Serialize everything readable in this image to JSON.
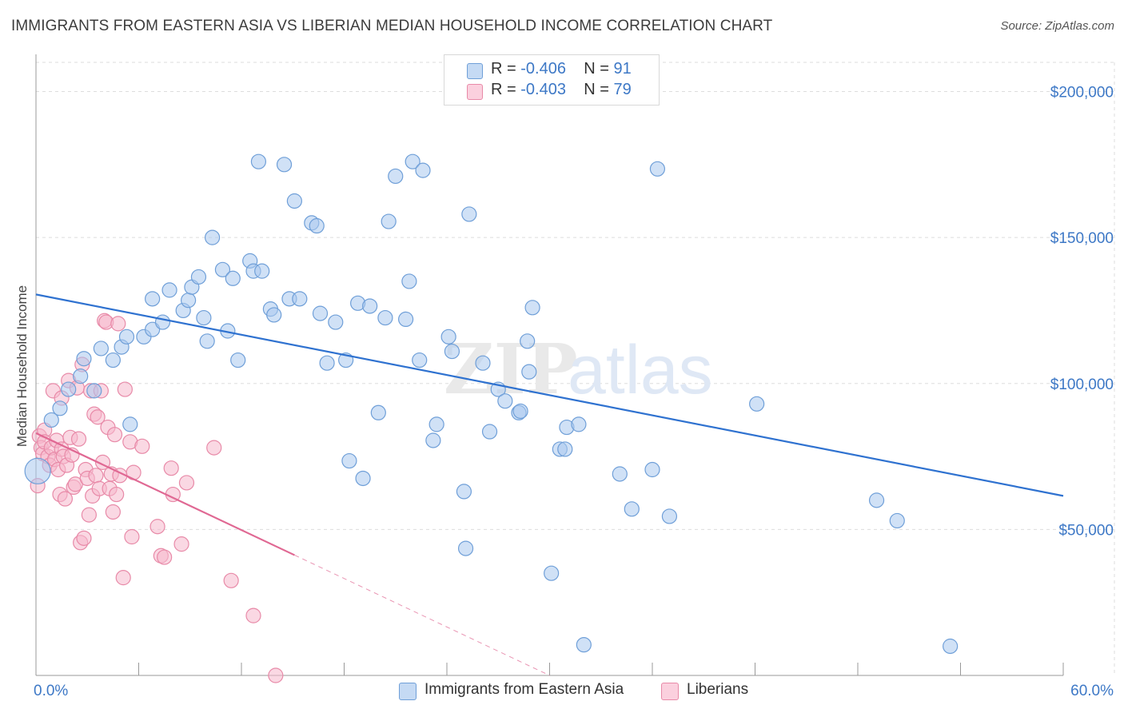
{
  "header": {
    "title": "IMMIGRANTS FROM EASTERN ASIA VS LIBERIAN MEDIAN HOUSEHOLD INCOME CORRELATION CHART",
    "source": "Source: ZipAtlas.com"
  },
  "legend": {
    "rows": [
      {
        "r_label": "R = ",
        "r_value": "-0.406",
        "n_label": "N = ",
        "n_value": "91"
      },
      {
        "r_label": "R = ",
        "r_value": "-0.403",
        "n_label": "N = ",
        "n_value": "79"
      }
    ]
  },
  "watermark": {
    "part1": "ZIP",
    "part2": "atlas"
  },
  "colors": {
    "blue_fill": "#a9c8ef",
    "blue_stroke": "#6f9fd8",
    "blue_line": "#2f72d0",
    "pink_fill": "#f6b8cc",
    "pink_stroke": "#e88aa8",
    "pink_line": "#e06893",
    "tick_text": "#3d78c6",
    "grid": "#dddddd"
  },
  "chart_data": {
    "type": "scatter",
    "title": "IMMIGRANTS FROM EASTERN ASIA VS LIBERIAN MEDIAN HOUSEHOLD INCOME CORRELATION CHART",
    "xlabel": "",
    "ylabel": "Median Household Income",
    "xlim": [
      0,
      60
    ],
    "ylim": [
      0,
      210000
    ],
    "x_tick_labels": [
      "0.0%",
      "60.0%"
    ],
    "y_ticks": [
      {
        "value": 50000,
        "label": "$50,000"
      },
      {
        "value": 100000,
        "label": "$100,000"
      },
      {
        "value": 150000,
        "label": "$150,000"
      },
      {
        "value": 200000,
        "label": "$200,000"
      }
    ],
    "grid": true,
    "legend_position": "top-center",
    "series": [
      {
        "name": "Immigrants from Eastern Asia",
        "color": "#a9c8ef",
        "trend": {
          "x": [
            0,
            60
          ],
          "y": [
            130500,
            61500
          ],
          "solid_to": 60
        },
        "points": [
          [
            0.1,
            70000
          ],
          [
            0.9,
            87500
          ],
          [
            1.4,
            91500
          ],
          [
            1.9,
            98000
          ],
          [
            2.6,
            102500
          ],
          [
            2.8,
            108500
          ],
          [
            3.4,
            97500
          ],
          [
            3.8,
            112000
          ],
          [
            4.5,
            108000
          ],
          [
            5.0,
            112500
          ],
          [
            5.3,
            116000
          ],
          [
            5.5,
            86000
          ],
          [
            6.3,
            116000
          ],
          [
            6.8,
            118500
          ],
          [
            6.8,
            129000
          ],
          [
            7.4,
            121000
          ],
          [
            7.8,
            132000
          ],
          [
            8.6,
            125000
          ],
          [
            8.9,
            128500
          ],
          [
            9.1,
            133000
          ],
          [
            9.5,
            136500
          ],
          [
            9.8,
            122500
          ],
          [
            10.0,
            114500
          ],
          [
            10.3,
            150000
          ],
          [
            10.9,
            139000
          ],
          [
            11.2,
            118000
          ],
          [
            11.5,
            136000
          ],
          [
            11.8,
            108000
          ],
          [
            12.5,
            142000
          ],
          [
            12.7,
            138500
          ],
          [
            13.2,
            138500
          ],
          [
            13.0,
            176000
          ],
          [
            13.7,
            125500
          ],
          [
            13.9,
            123500
          ],
          [
            14.5,
            175000
          ],
          [
            14.8,
            129000
          ],
          [
            15.4,
            129000
          ],
          [
            15.1,
            162500
          ],
          [
            16.1,
            155000
          ],
          [
            16.4,
            154000
          ],
          [
            16.6,
            124000
          ],
          [
            17.0,
            107000
          ],
          [
            17.5,
            121000
          ],
          [
            18.1,
            108000
          ],
          [
            18.3,
            73500
          ],
          [
            18.8,
            127500
          ],
          [
            19.1,
            67500
          ],
          [
            19.5,
            126500
          ],
          [
            20.0,
            90000
          ],
          [
            20.4,
            122500
          ],
          [
            20.6,
            155500
          ],
          [
            21.0,
            171000
          ],
          [
            21.6,
            122000
          ],
          [
            21.8,
            135000
          ],
          [
            22.0,
            176000
          ],
          [
            22.4,
            108000
          ],
          [
            22.6,
            173000
          ],
          [
            23.2,
            80500
          ],
          [
            23.4,
            86000
          ],
          [
            24.1,
            116000
          ],
          [
            24.3,
            111000
          ],
          [
            25.0,
            63000
          ],
          [
            25.1,
            43500
          ],
          [
            25.3,
            158000
          ],
          [
            26.1,
            107000
          ],
          [
            26.5,
            83500
          ],
          [
            27.0,
            98000
          ],
          [
            27.4,
            94000
          ],
          [
            28.2,
            90000
          ],
          [
            28.3,
            90500
          ],
          [
            28.7,
            114500
          ],
          [
            28.8,
            104000
          ],
          [
            29.0,
            126000
          ],
          [
            30.1,
            35000
          ],
          [
            30.6,
            77500
          ],
          [
            30.9,
            77500
          ],
          [
            31.0,
            85000
          ],
          [
            31.7,
            86000
          ],
          [
            32.0,
            10500
          ],
          [
            34.1,
            69000
          ],
          [
            34.8,
            57000
          ],
          [
            36.0,
            70500
          ],
          [
            36.3,
            173500
          ],
          [
            37.0,
            54500
          ],
          [
            42.1,
            93000
          ],
          [
            49.1,
            60000
          ],
          [
            50.3,
            53000
          ],
          [
            53.4,
            10000
          ]
        ]
      },
      {
        "name": "Liberians",
        "color": "#f6b8cc",
        "trend": {
          "x": [
            0,
            30
          ],
          "y": [
            83000,
            0
          ],
          "solid_to": 15.1
        },
        "points": [
          [
            0.1,
            65000
          ],
          [
            0.2,
            82000
          ],
          [
            0.3,
            78000
          ],
          [
            0.4,
            76000
          ],
          [
            0.5,
            84000
          ],
          [
            0.5,
            80000
          ],
          [
            0.7,
            75000
          ],
          [
            0.8,
            72000
          ],
          [
            0.9,
            78000
          ],
          [
            1.0,
            97500
          ],
          [
            1.1,
            74000
          ],
          [
            1.2,
            80500
          ],
          [
            1.3,
            70500
          ],
          [
            1.4,
            62000
          ],
          [
            1.5,
            95000
          ],
          [
            1.5,
            77500
          ],
          [
            1.6,
            75000
          ],
          [
            1.7,
            60500
          ],
          [
            1.8,
            72000
          ],
          [
            1.9,
            101000
          ],
          [
            2.0,
            81500
          ],
          [
            2.1,
            75500
          ],
          [
            2.2,
            64500
          ],
          [
            2.3,
            65500
          ],
          [
            2.4,
            98500
          ],
          [
            2.5,
            81000
          ],
          [
            2.6,
            45500
          ],
          [
            2.7,
            106500
          ],
          [
            2.8,
            47000
          ],
          [
            2.9,
            70500
          ],
          [
            3.0,
            67500
          ],
          [
            3.1,
            55000
          ],
          [
            3.2,
            97500
          ],
          [
            3.3,
            61500
          ],
          [
            3.4,
            89500
          ],
          [
            3.5,
            68500
          ],
          [
            3.6,
            88500
          ],
          [
            3.7,
            64000
          ],
          [
            3.8,
            97500
          ],
          [
            3.9,
            73000
          ],
          [
            4.0,
            121500
          ],
          [
            4.1,
            121000
          ],
          [
            4.2,
            85000
          ],
          [
            4.3,
            64000
          ],
          [
            4.4,
            69000
          ],
          [
            4.5,
            56000
          ],
          [
            4.6,
            82500
          ],
          [
            4.7,
            62000
          ],
          [
            4.8,
            120500
          ],
          [
            4.9,
            68500
          ],
          [
            5.1,
            33500
          ],
          [
            5.2,
            98000
          ],
          [
            5.5,
            80000
          ],
          [
            5.6,
            47500
          ],
          [
            5.7,
            69500
          ],
          [
            6.2,
            78500
          ],
          [
            7.1,
            51000
          ],
          [
            7.3,
            41000
          ],
          [
            7.5,
            40500
          ],
          [
            7.9,
            71000
          ],
          [
            8.0,
            62000
          ],
          [
            8.5,
            45000
          ],
          [
            8.8,
            66000
          ],
          [
            10.4,
            78000
          ],
          [
            11.4,
            32500
          ],
          [
            12.7,
            20500
          ],
          [
            14.0,
            0
          ]
        ]
      }
    ]
  }
}
